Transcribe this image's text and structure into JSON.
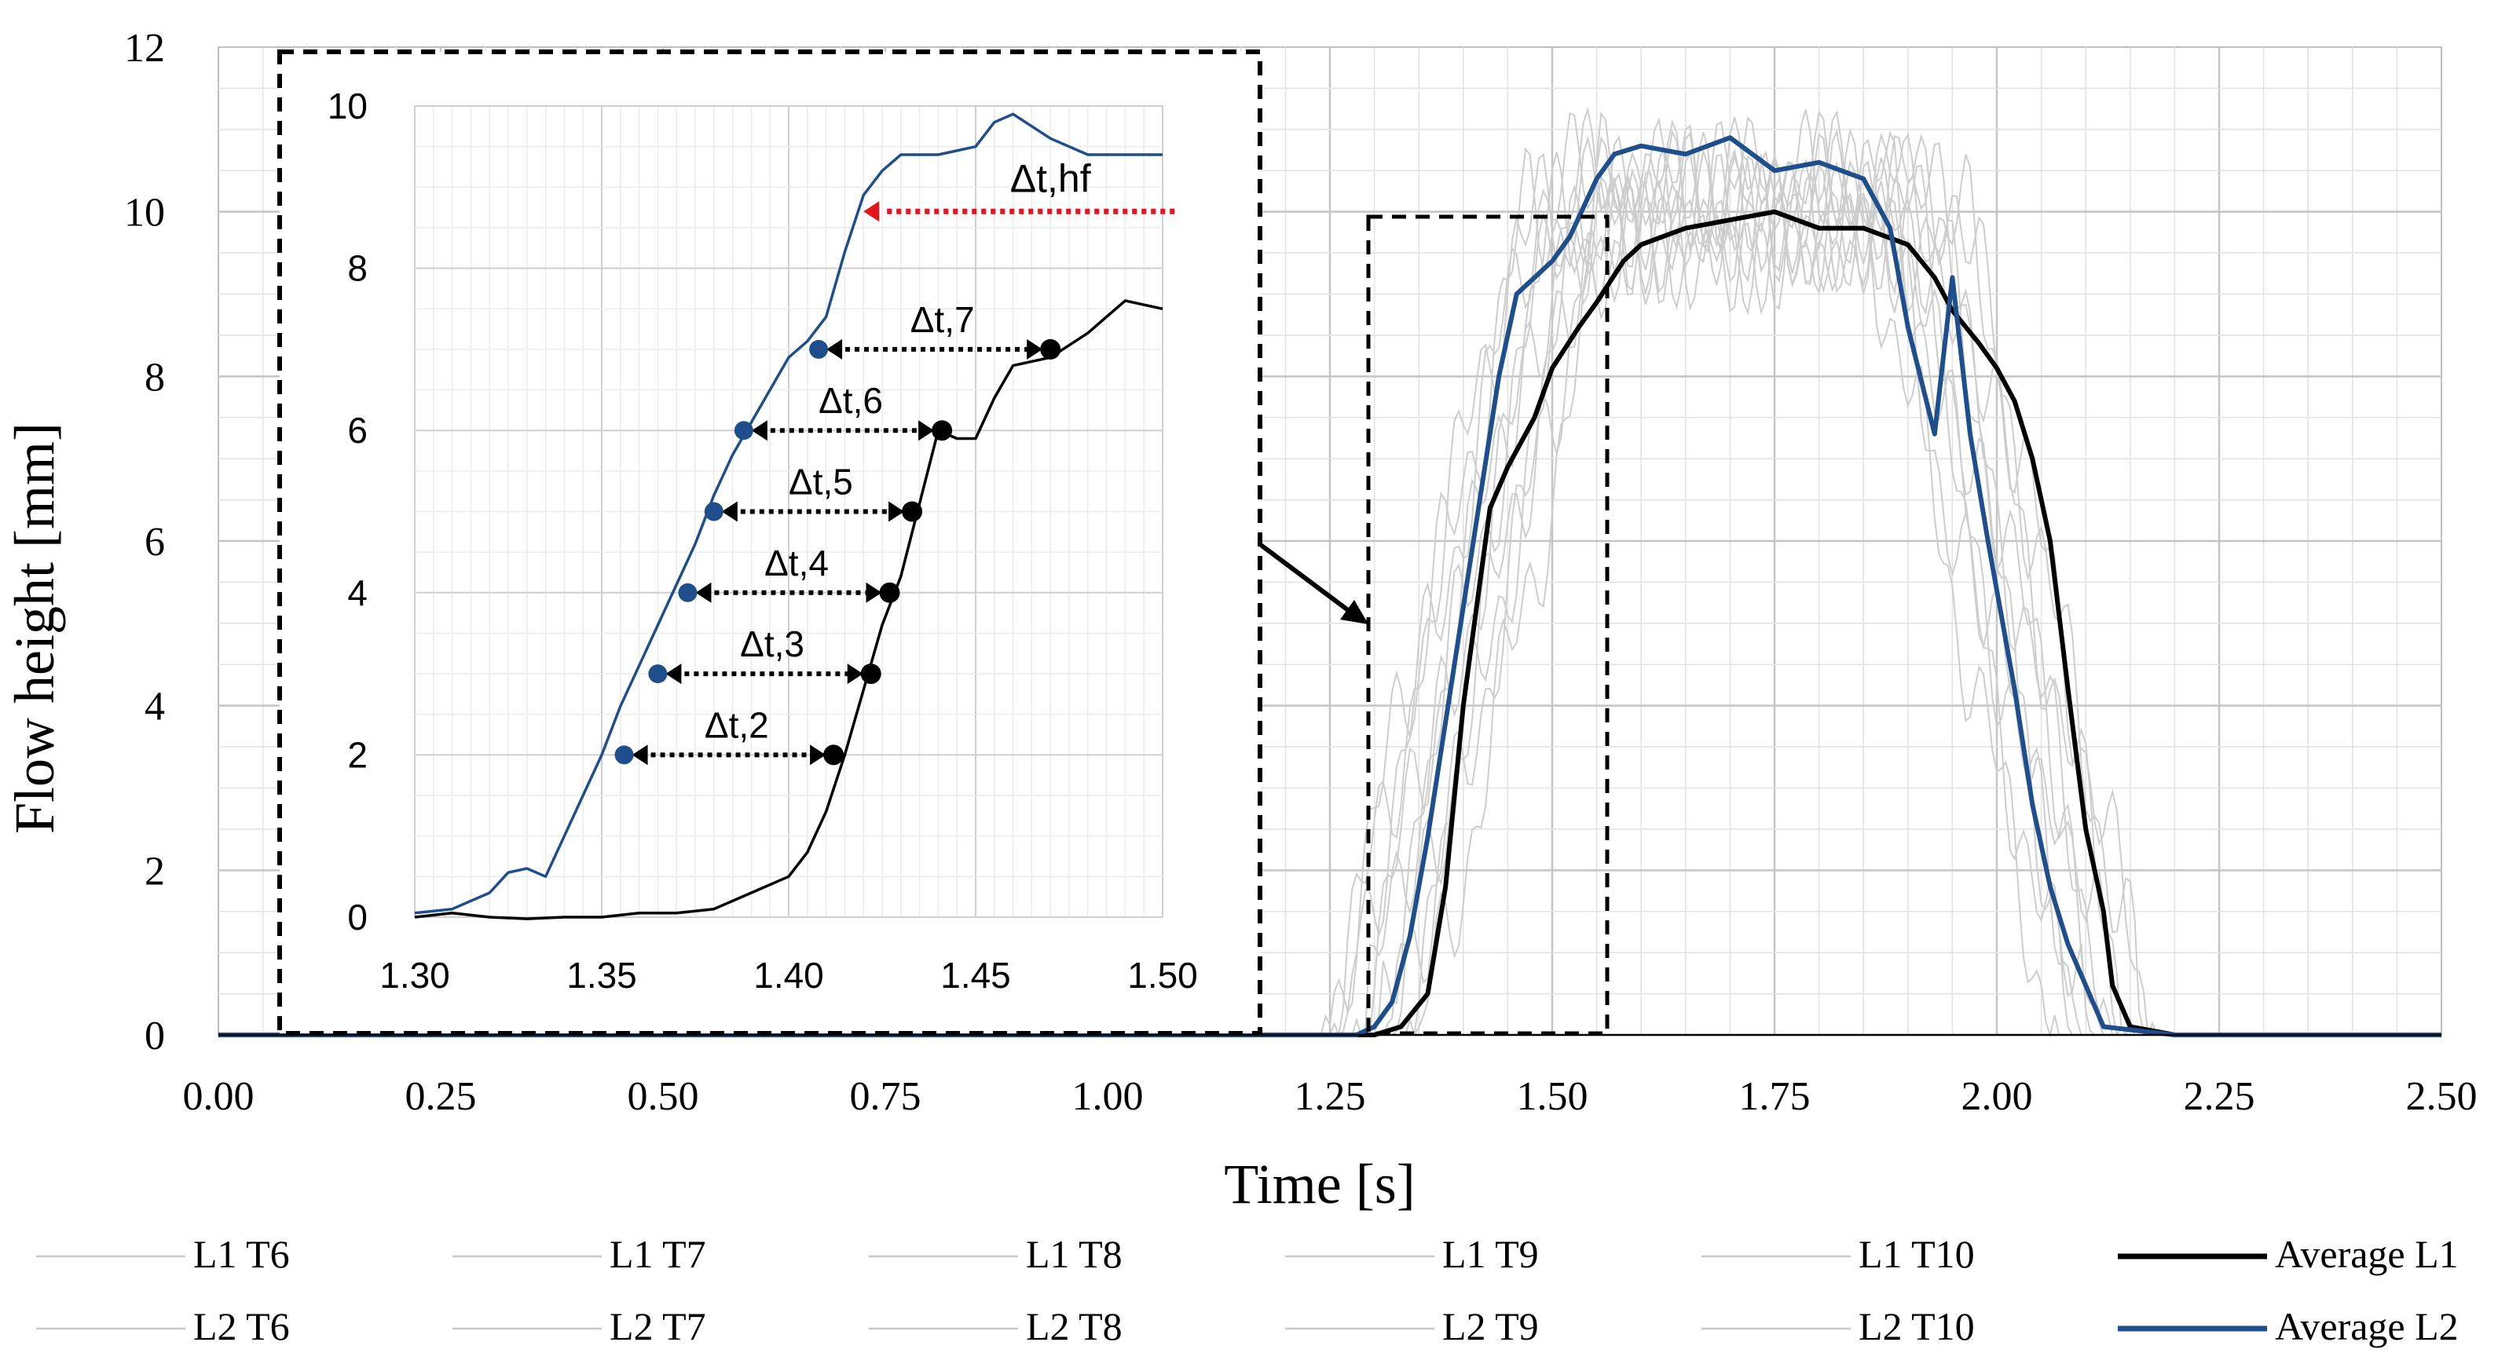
{
  "chart_data": {
    "type": "line",
    "title": "",
    "xlabel": "Time [s]",
    "ylabel": "Flow height [mm]",
    "xlim": [
      0,
      2.5
    ],
    "ylim": [
      0,
      12
    ],
    "x_ticks": [
      "0.00",
      "0.25",
      "0.50",
      "0.75",
      "1.00",
      "1.25",
      "1.50",
      "1.75",
      "2.00",
      "2.25",
      "2.50"
    ],
    "y_ticks": [
      "0",
      "2",
      "4",
      "6",
      "8",
      "10",
      "12"
    ],
    "grid": true,
    "legend_position": "bottom",
    "legend": [
      {
        "name": "L1 T6",
        "color": "#c8c8c8"
      },
      {
        "name": "L1 T7",
        "color": "#c8c8c8"
      },
      {
        "name": "L1 T8",
        "color": "#c8c8c8"
      },
      {
        "name": "L1 T9",
        "color": "#c8c8c8"
      },
      {
        "name": "L1 T10",
        "color": "#c8c8c8"
      },
      {
        "name": "Average L1",
        "color": "#000000"
      },
      {
        "name": "L2 T6",
        "color": "#c8c8c8"
      },
      {
        "name": "L2 T7",
        "color": "#c8c8c8"
      },
      {
        "name": "L2 T8",
        "color": "#c8c8c8"
      },
      {
        "name": "L2 T9",
        "color": "#c8c8c8"
      },
      {
        "name": "L2 T10",
        "color": "#c8c8c8"
      },
      {
        "name": "Average L2",
        "color": "#1f4e8c"
      }
    ],
    "series": [
      {
        "name": "Average L1",
        "color": "#000000",
        "x": [
          0,
          1.15,
          1.3,
          1.33,
          1.36,
          1.38,
          1.4,
          1.42,
          1.43,
          1.45,
          1.48,
          1.5,
          1.53,
          1.55,
          1.58,
          1.6,
          1.65,
          1.7,
          1.75,
          1.8,
          1.85,
          1.9,
          1.93,
          1.95,
          1.98,
          2.0,
          2.02,
          2.04,
          2.06,
          2.08,
          2.1,
          2.12,
          2.13,
          2.15,
          2.2,
          2.5
        ],
        "y": [
          0,
          0,
          0,
          0.1,
          0.5,
          1.8,
          4.0,
          5.6,
          6.4,
          6.9,
          7.5,
          8.1,
          8.6,
          8.9,
          9.4,
          9.6,
          9.8,
          9.9,
          10.0,
          9.8,
          9.8,
          9.6,
          9.2,
          8.8,
          8.4,
          8.1,
          7.7,
          7.0,
          6.0,
          4.2,
          2.5,
          1.5,
          0.6,
          0.1,
          0,
          0
        ]
      },
      {
        "name": "Average L2",
        "color": "#1f4e8c",
        "x": [
          0,
          1.28,
          1.3,
          1.32,
          1.34,
          1.36,
          1.38,
          1.4,
          1.42,
          1.44,
          1.46,
          1.5,
          1.52,
          1.55,
          1.57,
          1.6,
          1.65,
          1.7,
          1.75,
          1.8,
          1.85,
          1.88,
          1.9,
          1.93,
          1.95,
          1.97,
          1.99,
          2.0,
          2.02,
          2.04,
          2.06,
          2.08,
          2.1,
          2.12,
          2.2,
          2.5
        ],
        "y": [
          0,
          0,
          0.1,
          0.4,
          1.2,
          2.4,
          3.8,
          5.2,
          6.6,
          8.0,
          9.0,
          9.4,
          9.7,
          10.4,
          10.7,
          10.8,
          10.7,
          10.9,
          10.5,
          10.6,
          10.4,
          9.8,
          8.6,
          7.3,
          9.2,
          7.3,
          6.0,
          5.4,
          4.2,
          2.8,
          1.8,
          1.1,
          0.6,
          0.1,
          0,
          0
        ]
      }
    ],
    "inset": {
      "xlim": [
        1.3,
        1.5
      ],
      "ylim": [
        0,
        10
      ],
      "x_ticks": [
        "1.30",
        "1.35",
        "1.40",
        "1.45",
        "1.50"
      ],
      "y_ticks": [
        "0",
        "2",
        "4",
        "6",
        "8",
        "10"
      ],
      "series": [
        {
          "name": "Average L2",
          "color": "#1f4e8c",
          "x": [
            1.3,
            1.31,
            1.32,
            1.325,
            1.33,
            1.335,
            1.34,
            1.345,
            1.35,
            1.355,
            1.36,
            1.365,
            1.37,
            1.375,
            1.38,
            1.385,
            1.39,
            1.395,
            1.4,
            1.405,
            1.41,
            1.415,
            1.42,
            1.425,
            1.43,
            1.44,
            1.45,
            1.455,
            1.46,
            1.47,
            1.48,
            1.49,
            1.5
          ],
          "y": [
            0.05,
            0.1,
            0.3,
            0.55,
            0.6,
            0.5,
            1.0,
            1.5,
            2.0,
            2.6,
            3.1,
            3.6,
            4.1,
            4.6,
            5.2,
            5.7,
            6.1,
            6.5,
            6.9,
            7.1,
            7.4,
            8.2,
            8.9,
            9.2,
            9.4,
            9.4,
            9.5,
            9.8,
            9.9,
            9.6,
            9.4,
            9.4,
            9.4
          ]
        },
        {
          "name": "Average L1",
          "color": "#000000",
          "x": [
            1.3,
            1.31,
            1.32,
            1.33,
            1.34,
            1.35,
            1.36,
            1.37,
            1.38,
            1.39,
            1.4,
            1.405,
            1.41,
            1.415,
            1.42,
            1.425,
            1.43,
            1.435,
            1.44,
            1.445,
            1.45,
            1.455,
            1.46,
            1.47,
            1.48,
            1.49,
            1.5
          ],
          "y": [
            0,
            0.05,
            0.0,
            -0.02,
            0.0,
            0.0,
            0.05,
            0.05,
            0.1,
            0.3,
            0.5,
            0.8,
            1.3,
            2.0,
            2.8,
            3.6,
            4.2,
            5.1,
            6.0,
            5.9,
            5.9,
            6.4,
            6.8,
            6.9,
            7.2,
            7.6,
            7.5
          ]
        }
      ],
      "markers_l2": [
        {
          "x": 1.356,
          "y": 2
        },
        {
          "x": 1.365,
          "y": 3
        },
        {
          "x": 1.373,
          "y": 4
        },
        {
          "x": 1.38,
          "y": 5
        },
        {
          "x": 1.388,
          "y": 6
        },
        {
          "x": 1.408,
          "y": 7
        }
      ],
      "markers_l1": [
        {
          "x": 1.412,
          "y": 2
        },
        {
          "x": 1.422,
          "y": 3
        },
        {
          "x": 1.427,
          "y": 4
        },
        {
          "x": 1.433,
          "y": 5
        },
        {
          "x": 1.441,
          "y": 6
        },
        {
          "x": 1.47,
          "y": 7
        }
      ],
      "interval_labels": [
        "Δt,2",
        "Δt,3",
        "Δt,4",
        "Δt,5",
        "Δt,6",
        "Δt,7"
      ],
      "hf_label": "Δt,hf",
      "hf_level": 8.7,
      "hf_marker_x": 1.42
    }
  }
}
